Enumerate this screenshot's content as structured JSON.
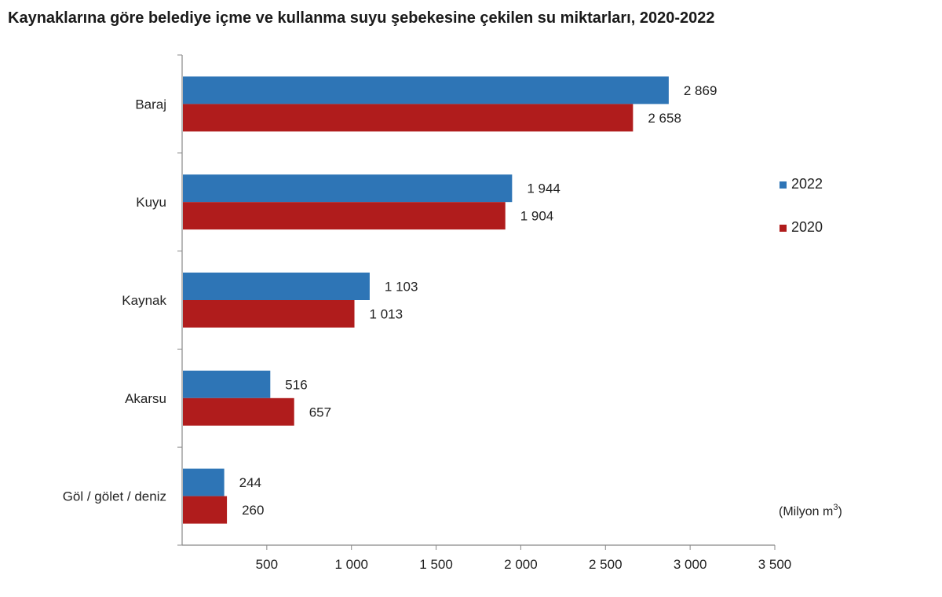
{
  "chart_data": {
    "type": "bar",
    "orientation": "horizontal",
    "title": "Kaynaklarına göre belediye içme ve kullanma suyu şebekesine çekilen su miktarları, 2020-2022",
    "categories": [
      "Baraj",
      "Kuyu",
      "Kaynak",
      "Akarsu",
      "Göl / gölet / deniz"
    ],
    "series": [
      {
        "name": "2022",
        "color": "#2E75B6",
        "values": [
          2869,
          1944,
          1103,
          516,
          244
        ],
        "labels": [
          "2 869",
          "1 944",
          "1 103",
          "516",
          "244"
        ]
      },
      {
        "name": "2020",
        "color": "#B01C1C",
        "values": [
          2658,
          1904,
          1013,
          657,
          260
        ],
        "labels": [
          "2 658",
          "1 904",
          "1 013",
          "657",
          "260"
        ]
      }
    ],
    "xlim": [
      0,
      3500
    ],
    "xticks": [
      500,
      1000,
      1500,
      2000,
      2500,
      3000,
      3500
    ],
    "xtick_labels": [
      "500",
      "1 000",
      "1 500",
      "2 000",
      "2 500",
      "3 000",
      "3 500"
    ],
    "unit_label": "(Milyon m",
    "unit_superscript": "3",
    "unit_close": ")",
    "legend_placement": "right",
    "grid": false
  }
}
